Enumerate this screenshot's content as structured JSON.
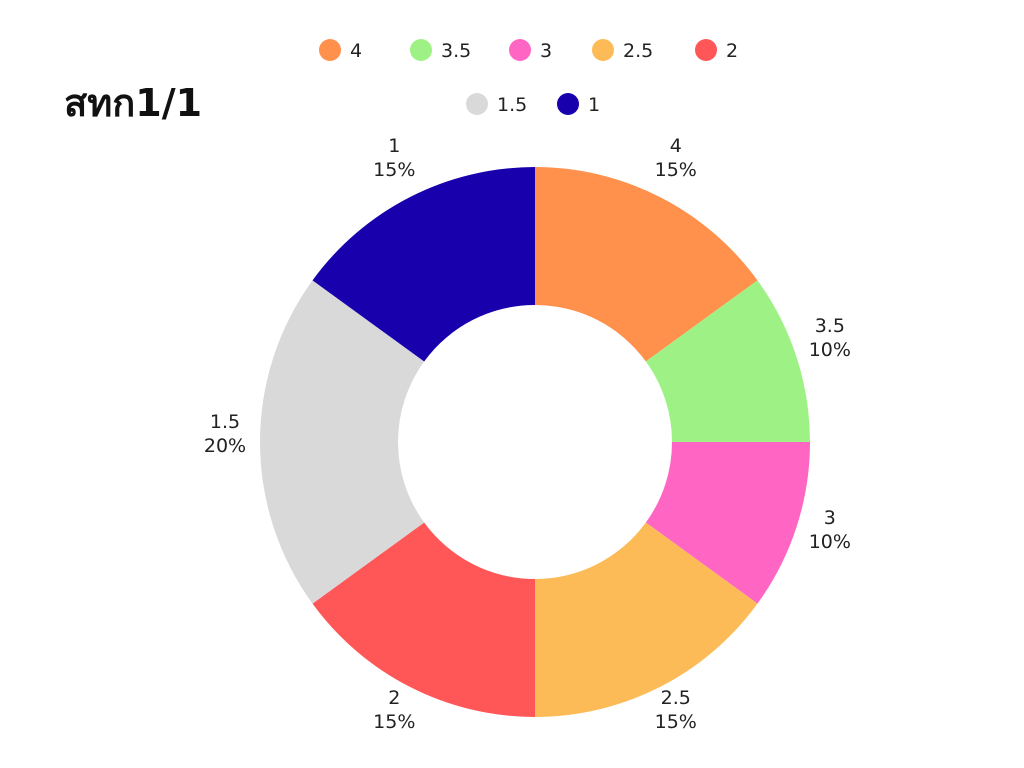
{
  "chart_data": {
    "type": "pie",
    "title": "สทก1/1",
    "donut": true,
    "legend_position": "top",
    "slices": [
      {
        "label": "4",
        "value": 15,
        "percent_label": "15%",
        "color": "#FF914D"
      },
      {
        "label": "3.5",
        "value": 10,
        "percent_label": "10%",
        "color": "#9EF285"
      },
      {
        "label": "3",
        "value": 10,
        "percent_label": "10%",
        "color": "#FF66C4"
      },
      {
        "label": "2.5",
        "value": 15,
        "percent_label": "15%",
        "color": "#FDBB58"
      },
      {
        "label": "2",
        "value": 15,
        "percent_label": "15%",
        "color": "#FF5757"
      },
      {
        "label": "1.5",
        "value": 20,
        "percent_label": "20%",
        "color": "#D9D9D9"
      },
      {
        "label": "1",
        "value": 15,
        "percent_label": "15%",
        "color": "#1800AD"
      }
    ]
  }
}
